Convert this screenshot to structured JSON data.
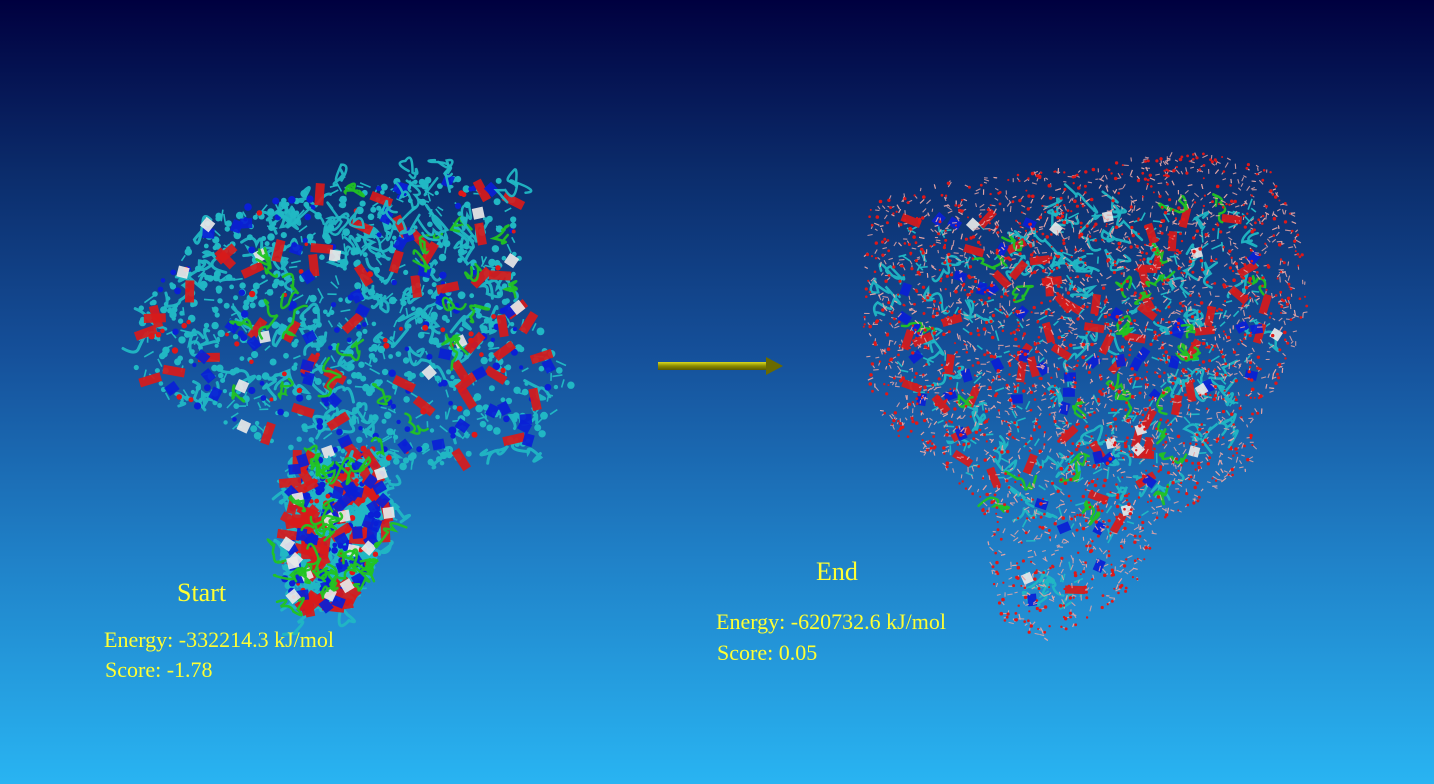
{
  "start": {
    "title": "Start",
    "energy": "Energy: -332214.3 kJ/mol",
    "score": "Score: -1.78"
  },
  "end": {
    "title": "End",
    "energy": "Energy: -620732.6 kJ/mol",
    "score": "Score: 0.05"
  },
  "colors": {
    "label_yellow": "#ffff33",
    "arrow": "#9a9a00",
    "carbon_cyan": "#21b7c4",
    "nitrogen_blue": "#0a1fd6",
    "oxygen_red": "#e01818",
    "sheet_red": "#d81a1a",
    "turn_green": "#22c422",
    "helix_white": "#e8e8e8",
    "water_pink": "#e6a5a5"
  }
}
